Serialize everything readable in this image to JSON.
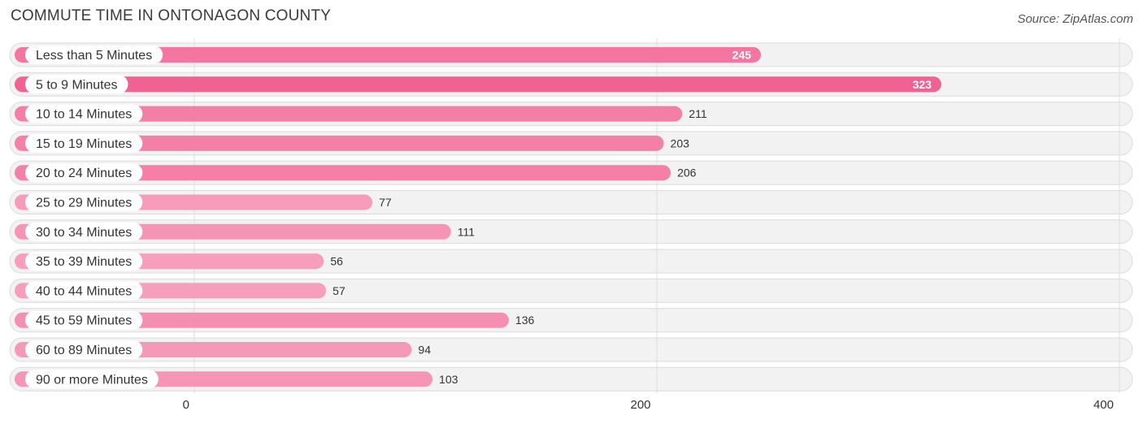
{
  "title": "COMMUTE TIME IN ONTONAGON COUNTY",
  "source": "Source: ZipAtlas.com",
  "chart_data": {
    "type": "bar",
    "orientation": "horizontal",
    "categories": [
      "Less than 5 Minutes",
      "5 to 9 Minutes",
      "10 to 14 Minutes",
      "15 to 19 Minutes",
      "20 to 24 Minutes",
      "25 to 29 Minutes",
      "30 to 34 Minutes",
      "35 to 39 Minutes",
      "40 to 44 Minutes",
      "45 to 59 Minutes",
      "60 to 89 Minutes",
      "90 or more Minutes"
    ],
    "values": [
      245,
      323,
      211,
      203,
      206,
      77,
      111,
      56,
      57,
      136,
      94,
      103
    ],
    "xlim": [
      0,
      400
    ],
    "xticks": [
      0,
      200,
      400
    ],
    "title": "COMMUTE TIME IN ONTONAGON COUNTY",
    "xlabel": "",
    "ylabel": "",
    "grid": true,
    "colors": {
      "bar_dark": "#f06292",
      "bar_light": "#f8a5c2",
      "label_inside": "#ffffff",
      "label_outside": "#333333"
    }
  }
}
